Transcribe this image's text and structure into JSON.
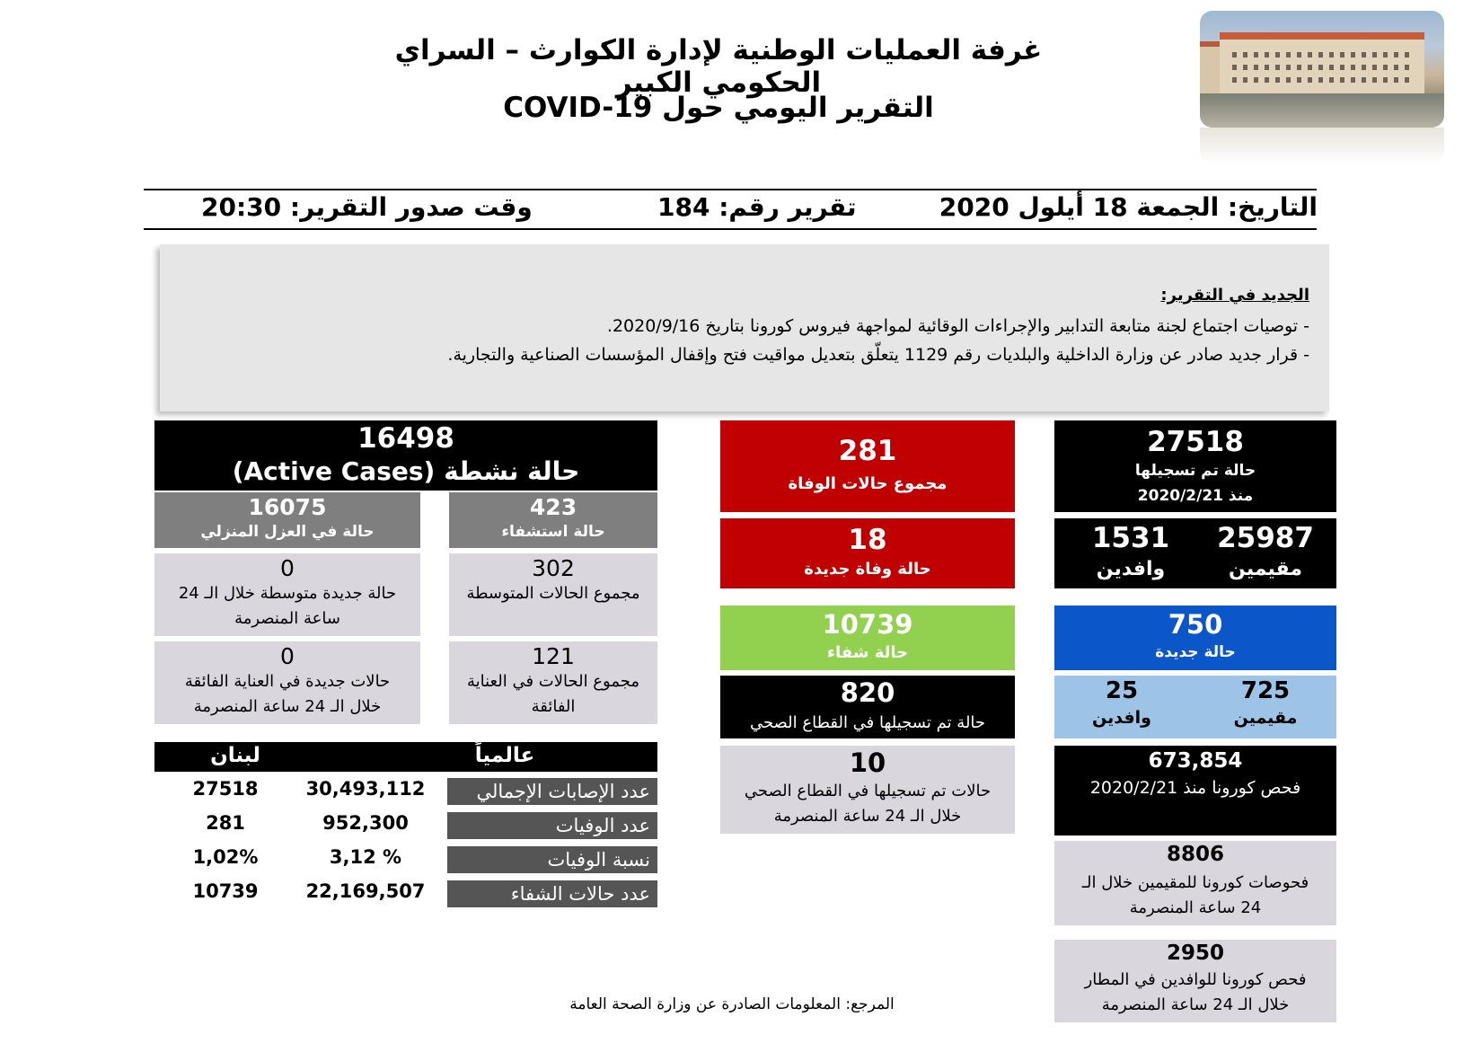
{
  "header": {
    "title_line1": "غرفة العمليات الوطنية لإدارة الكوارث – السراي الحكومي الكبير",
    "title_line2": "التقرير اليومي حول COVID-19"
  },
  "info_bar": {
    "date": "التاريخ: الجمعة 18 أيلول 2020",
    "report_number": "تقرير رقم: 184",
    "report_time": "وقت صدور التقرير: 20:30"
  },
  "news": {
    "title": "الجديد في التقرير:",
    "items": [
      "-   توصيات اجتماع لجنة متابعة التدابير والإجراءات الوقائية لمواجهة فيروس كورونا بتاريخ 2020/9/16.",
      "-   قرار جديد صادر عن وزارة الداخلية والبلديات رقم 1129 يتعلّق بتعديل مواقيت فتح وإقفال المؤسسات الصناعية والتجارية."
    ]
  },
  "right_col": {
    "total_cases": {
      "value": "27518",
      "label1": "حالة تم تسجيلها",
      "label2": "منذ 2020/2/21"
    },
    "residents": {
      "value": "25987",
      "label": "مقيمين"
    },
    "arrivals": {
      "value": "1531",
      "label": "وافدين"
    },
    "new_cases": {
      "value": "750",
      "label": "حالة جديدة"
    },
    "new_residents": {
      "value": "725",
      "label": "مقيمين"
    },
    "new_arrivals": {
      "value": "25",
      "label": "وافدين"
    },
    "tests_total": {
      "value": "673,854",
      "label": "فحص كورونا منذ 2020/2/21"
    },
    "tests_residents": {
      "value": "8806",
      "label1": "فحوصات كورونا للمقيمين خلال الـ",
      "label2": "24 ساعة المنصرمة"
    },
    "tests_airport": {
      "value": "2950",
      "label1": "فحص كورونا للوافدين في المطار",
      "label2": "خلال الـ 24 ساعة المنصرمة"
    }
  },
  "mid_col": {
    "total_deaths": {
      "value": "281",
      "label": "مجموع حالات الوفاة"
    },
    "new_deaths": {
      "value": "18",
      "label": "حالة وفاة جديدة"
    },
    "recovered": {
      "value": "10739",
      "label": "حالة شفاء"
    },
    "health_sector": {
      "value": "820",
      "label": "حالة تم تسجيلها في القطاع الصحي"
    },
    "health_sector_new": {
      "value": "10",
      "label1": "حالات تم تسجيلها في القطاع الصحي",
      "label2": "خلال الـ 24 ساعة المنصرمة"
    }
  },
  "left_col": {
    "active": {
      "value": "16498",
      "label": "حالة نشطة (Active Cases)"
    },
    "hospital": {
      "value": "423",
      "label": "حالة استشفاء"
    },
    "home_isolation": {
      "value": "16075",
      "label": "حالة في العزل المنزلي"
    },
    "moderate_total": {
      "value": "302",
      "label": "مجموع الحالات المتوسطة"
    },
    "moderate_new": {
      "value": "0",
      "label1": "حالة جديدة متوسطة خلال الـ 24",
      "label2": "ساعة المنصرمة"
    },
    "icu_total": {
      "value": "121",
      "label1": "مجموع الحالات في العناية",
      "label2": "الفائقة"
    },
    "icu_new": {
      "value": "0",
      "label1": "حالات جديدة في العناية الفائقة",
      "label2": "خلال الـ 24 ساعة المنصرمة"
    }
  },
  "stats_table": {
    "col_global": "عالمياً",
    "col_lebanon": "لبنان",
    "rows": [
      {
        "label": "عدد الإصابات الإجمالي",
        "global": "30,493,112",
        "lebanon": "27518"
      },
      {
        "label": "عدد الوفيات",
        "global": "952,300",
        "lebanon": "281"
      },
      {
        "label": "نسبة الوفيات",
        "global": "3,12 %",
        "lebanon": "1,02%"
      },
      {
        "label": "عدد حالات الشفاء",
        "global": "22,169,507",
        "lebanon": "10739"
      }
    ]
  },
  "footer": {
    "reference": "المرجع: المعلومات الصادرة عن وزارة الصحة العامة"
  }
}
